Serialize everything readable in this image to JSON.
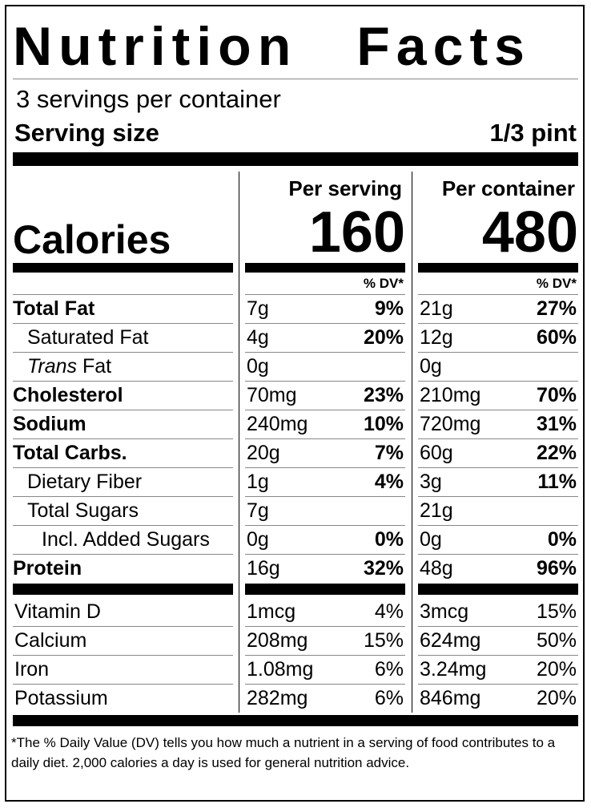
{
  "title": "Nutrition Facts",
  "title_words": [
    "Nutrition",
    "Facts"
  ],
  "servings_per_container": "3 servings per container",
  "serving_size_label": "Serving size",
  "serving_size_value": "1/3 pint",
  "col1_header": "Per serving",
  "col2_header": "Per container",
  "calories_label": "Calories",
  "calories_per_serving": "160",
  "calories_per_container": "480",
  "dv_header": "% DV*",
  "nutrients": [
    {
      "label": "Total Fat",
      "bold": true,
      "indent": 0,
      "s_amt": "7g",
      "s_dv": "9%",
      "c_amt": "21g",
      "c_dv": "27%"
    },
    {
      "label": "Saturated Fat",
      "bold": false,
      "indent": 1,
      "s_amt": "4g",
      "s_dv": "20%",
      "c_amt": "12g",
      "c_dv": "60%"
    },
    {
      "label": "Fat",
      "italic_prefix": "Trans",
      "bold": false,
      "indent": 1,
      "s_amt": "0g",
      "s_dv": "",
      "c_amt": "0g",
      "c_dv": ""
    },
    {
      "label": "Cholesterol",
      "bold": true,
      "indent": 0,
      "s_amt": "70mg",
      "s_dv": "23%",
      "c_amt": "210mg",
      "c_dv": "70%"
    },
    {
      "label": "Sodium",
      "bold": true,
      "indent": 0,
      "s_amt": "240mg",
      "s_dv": "10%",
      "c_amt": "720mg",
      "c_dv": "31%"
    },
    {
      "label": "Total Carbs.",
      "bold": true,
      "indent": 0,
      "s_amt": "20g",
      "s_dv": "7%",
      "c_amt": "60g",
      "c_dv": "22%"
    },
    {
      "label": "Dietary Fiber",
      "bold": false,
      "indent": 1,
      "s_amt": "1g",
      "s_dv": "4%",
      "c_amt": "3g",
      "c_dv": "11%"
    },
    {
      "label": "Total Sugars",
      "bold": false,
      "indent": 1,
      "s_amt": "7g",
      "s_dv": "",
      "c_amt": "21g",
      "c_dv": ""
    },
    {
      "label": "Incl. Added Sugars",
      "bold": false,
      "indent": 2,
      "s_amt": "0g",
      "s_dv": "0%",
      "c_amt": "0g",
      "c_dv": "0%"
    },
    {
      "label": "Protein",
      "bold": true,
      "indent": 0,
      "s_amt": "16g",
      "s_dv": "32%",
      "c_amt": "48g",
      "c_dv": "96%"
    }
  ],
  "vitamins": [
    {
      "label": "Vitamin D",
      "s_amt": "1mcg",
      "s_dv": "4%",
      "c_amt": "3mcg",
      "c_dv": "15%"
    },
    {
      "label": "Calcium",
      "s_amt": "208mg",
      "s_dv": "15%",
      "c_amt": "624mg",
      "c_dv": "50%"
    },
    {
      "label": "Iron",
      "s_amt": "1.08mg",
      "s_dv": "6%",
      "c_amt": "3.24mg",
      "c_dv": "20%"
    },
    {
      "label": "Potassium",
      "s_amt": "282mg",
      "s_dv": "6%",
      "c_amt": "846mg",
      "c_dv": "20%"
    }
  ],
  "footnote": "*The % Daily Value (DV) tells you how much a nutrient in a serving of food contributes to a daily diet. 2,000 calories a day is used for general nutrition advice."
}
